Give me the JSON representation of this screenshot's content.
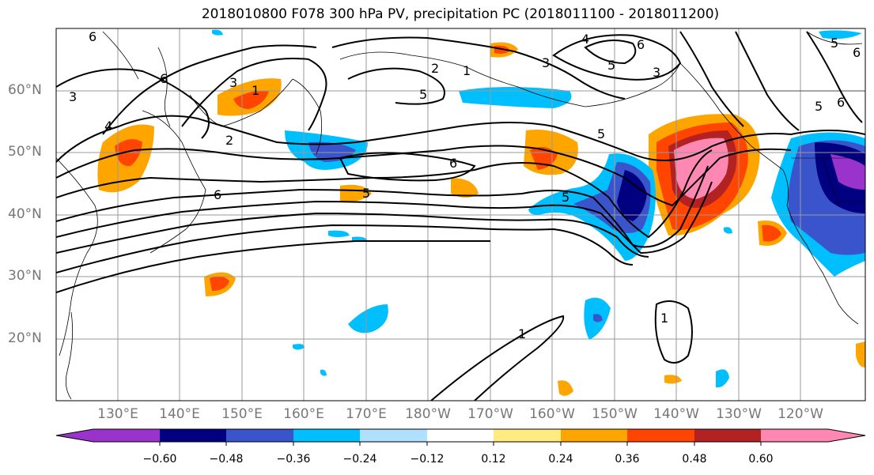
{
  "title": "2018010800 F078 300 hPa PV, precipitation PC (2018011100 - 2018011200)",
  "lat_labels": [
    "60°N",
    "50°N",
    "40°N",
    "30°N",
    "20°N"
  ],
  "lon_labels": [
    "130°E",
    "140°E",
    "150°E",
    "160°E",
    "170°E",
    "180°W",
    "170°W",
    "160°W",
    "150°W",
    "140°W",
    "130°W",
    "120°W"
  ],
  "colorbar": {
    "ticks": [
      "−0.60",
      "−0.48",
      "−0.36",
      "−0.24",
      "−0.12",
      "0.12",
      "0.24",
      "0.36",
      "0.48",
      "0.60"
    ],
    "colors": [
      "#9933cc",
      "#000080",
      "#3a55cc",
      "#00bfff",
      "#b0e0ff",
      "#ffffff",
      "#ffeb80",
      "#ffa500",
      "#ff4500",
      "#b22222",
      "#ff88b3"
    ]
  },
  "contour_labels": [
    "6",
    "3",
    "4",
    "6",
    "2",
    "1",
    "3",
    "2",
    "1",
    "5",
    "3",
    "5",
    "4",
    "6",
    "5",
    "3",
    "6",
    "5",
    "5",
    "6",
    "1",
    "1",
    "5",
    "6",
    "5",
    "6"
  ]
}
